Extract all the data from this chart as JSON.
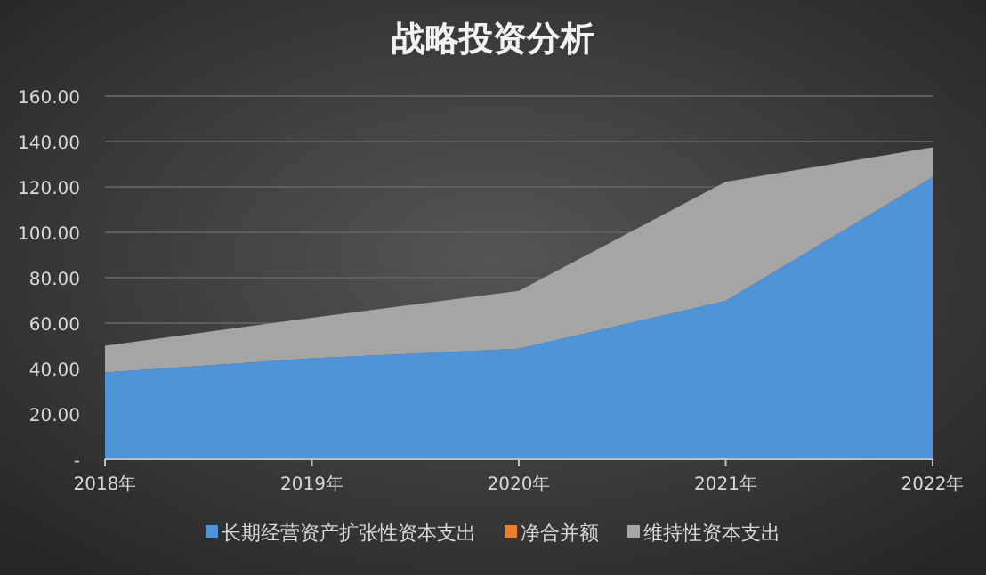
{
  "chart_data": {
    "type": "area",
    "title": "战略投资分析",
    "stacked": true,
    "categories": [
      "2018年",
      "2019年",
      "2020年",
      "2021年",
      "2022年"
    ],
    "series": [
      {
        "name": "长期经营资产扩张性资本支出",
        "color": "#4f93d8",
        "values": [
          38.2,
          44.5,
          48.7,
          69.8,
          124.3
        ]
      },
      {
        "name": "净合并额",
        "color": "#ed7d31",
        "values": [
          null,
          null,
          null,
          null,
          null
        ]
      },
      {
        "name": "维持性资本支出",
        "color": "#a5a5a5",
        "values": [
          11.8,
          17.9,
          25.5,
          52.5,
          13.2
        ]
      }
    ],
    "ylim": [
      0,
      160
    ],
    "yticks": [
      {
        "value": 0,
        "label": "-"
      },
      {
        "value": 20,
        "label": "20.00"
      },
      {
        "value": 40,
        "label": "40.00"
      },
      {
        "value": 60,
        "label": "60.00"
      },
      {
        "value": 80,
        "label": "80.00"
      },
      {
        "value": 100,
        "label": "100.00"
      },
      {
        "value": 120,
        "label": "120.00"
      },
      {
        "value": 140,
        "label": "140.00"
      },
      {
        "value": 160,
        "label": "160.00"
      }
    ],
    "grid": "y",
    "legend": "bottom"
  }
}
